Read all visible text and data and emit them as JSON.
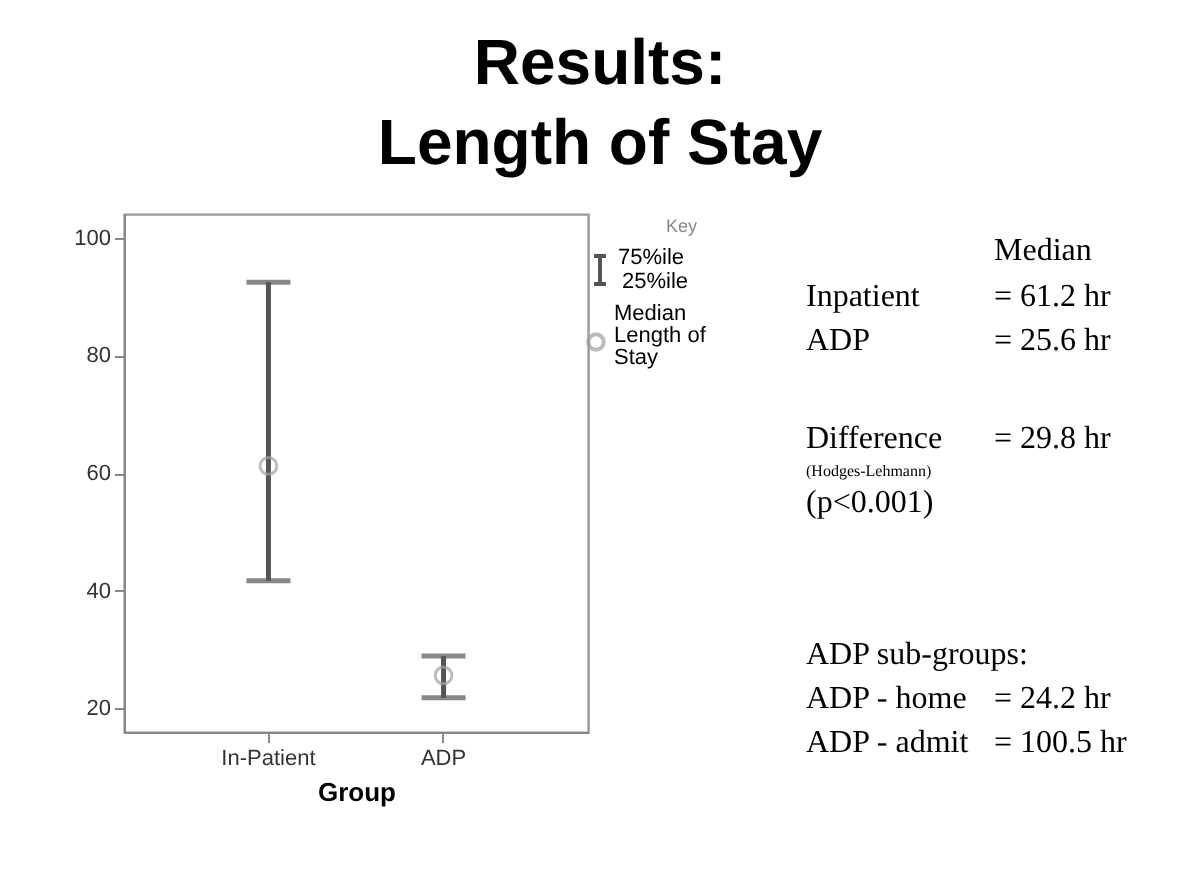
{
  "chart_data": {
    "type": "scatter",
    "title": "Results:\nLength of Stay",
    "xlabel": "Group",
    "legend_title": "Key",
    "legend": "top right",
    "marker": "circle",
    "grid": false,
    "categories": [
      "In-Patient",
      "ADP"
    ],
    "series": [
      {
        "name": "Median Length of Stay",
        "color": "#a0a0a0",
        "values": [
          61.2,
          25.6
        ],
        "errors": [
          [
            41.7,
            92.4
          ],
          [
            21.8,
            28.9
          ]
        ]
      }
    ],
    "ylim": [
      16,
      104
    ],
    "yticks": [
      20,
      40,
      60,
      80,
      100
    ],
    "annotations": [
      "75%ile",
      "25%ile",
      "Median",
      "Inpatient",
      "= 61.2 hr",
      "ADP",
      "= 25.6 hr",
      "Difference",
      "= 29.8 hr",
      "(Hodges-Lehmann)",
      "(p<0.001)",
      "ADP sub-groups:",
      "ADP - home",
      "= 24.2 hr",
      "ADP - admit",
      "= 100.5 hr"
    ]
  }
}
